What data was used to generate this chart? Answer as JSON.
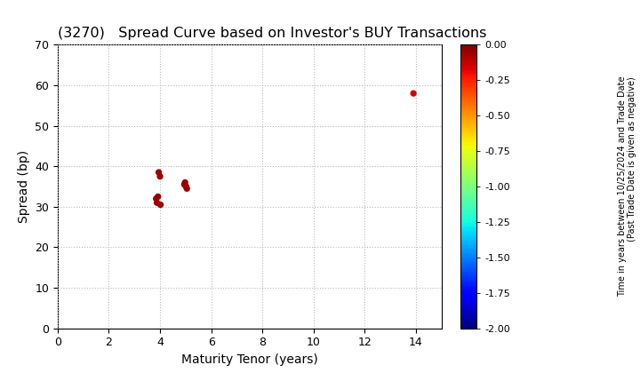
{
  "title": "(3270)   Spread Curve based on Investor's BUY Transactions",
  "xlabel": "Maturity Tenor (years)",
  "ylabel": "Spread (bp)",
  "xlim": [
    0,
    15
  ],
  "ylim": [
    0,
    70
  ],
  "xticks": [
    0,
    2,
    4,
    6,
    8,
    10,
    12,
    14
  ],
  "yticks": [
    0,
    10,
    20,
    30,
    40,
    50,
    60,
    70
  ],
  "colorbar_ticks": [
    0.0,
    -0.25,
    -0.5,
    -0.75,
    -1.0,
    -1.25,
    -1.5,
    -1.75,
    -2.0
  ],
  "colorbar_vmin": -2.0,
  "colorbar_vmax": 0.0,
  "colorbar_title_line1": "Time in years between 10/25/2024 and Trade Date",
  "colorbar_title_line2": "(Past Trade Date is given as negative)",
  "scatter_x": [
    3.85,
    3.92,
    3.95,
    4.0,
    3.88,
    4.02,
    4.95,
    5.02,
    5.05,
    4.98,
    13.9
  ],
  "scatter_y": [
    32.0,
    32.5,
    38.5,
    37.5,
    31.0,
    30.5,
    35.5,
    35.0,
    34.5,
    36.0,
    58.0
  ],
  "scatter_c": [
    -0.05,
    -0.05,
    -0.05,
    -0.05,
    -0.05,
    -0.05,
    -0.05,
    -0.05,
    -0.05,
    -0.05,
    -0.15
  ],
  "marker_size": 18,
  "background_color": "#ffffff",
  "grid_color": "#bbbbbb",
  "title_fontsize": 11.5,
  "axis_label_fontsize": 10,
  "tick_fontsize": 9,
  "cbar_tick_fontsize": 8,
  "cbar_title_fontsize": 7
}
